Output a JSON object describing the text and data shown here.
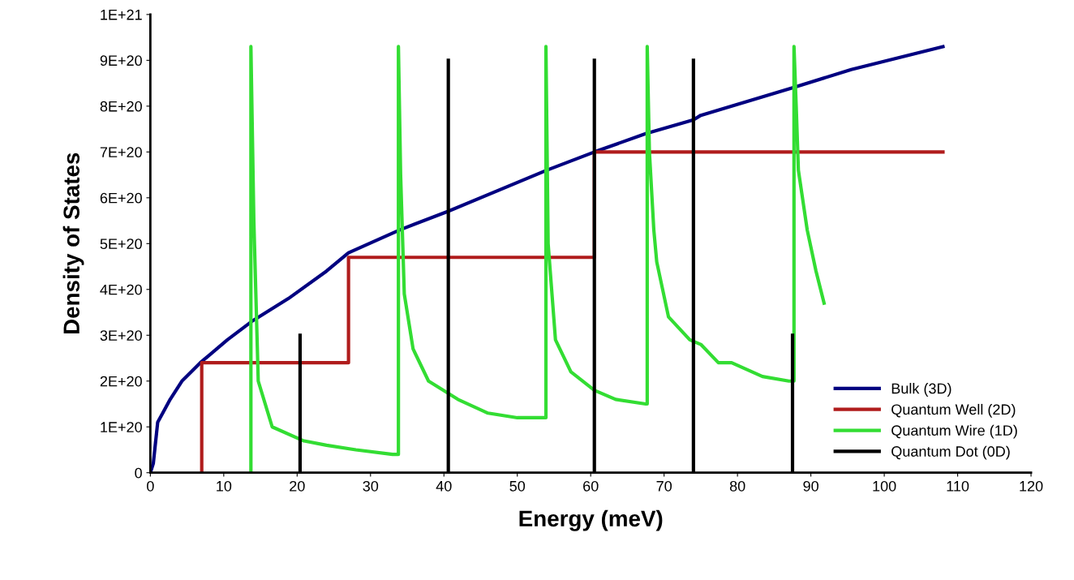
{
  "chart_data": {
    "type": "line",
    "xlabel": "Energy (meV)",
    "ylabel": "Density of States",
    "xlim": [
      0,
      120
    ],
    "xticks": [
      0,
      10,
      20,
      30,
      40,
      50,
      60,
      70,
      80,
      90,
      100,
      110,
      120
    ],
    "ylim": [
      0,
      1e+21
    ],
    "yticks": [
      0,
      {
        "value": 1e+20,
        "label": "1E+20"
      },
      {
        "value": 2e+20,
        "label": "2E+20"
      },
      {
        "value": 3e+20,
        "label": "3E+20"
      },
      {
        "value": 4e+20,
        "label": "4E+20"
      },
      {
        "value": 5e+20,
        "label": "5E+20"
      },
      {
        "value": 6e+20,
        "label": "6E+20"
      },
      {
        "value": 7e+20,
        "label": "7E+20"
      },
      {
        "value": 8e+20,
        "label": "8E+20"
      },
      {
        "value": 9e+20,
        "label": "9E+20"
      },
      {
        "value": 1e+21,
        "label": "1E+21"
      }
    ],
    "grid": false,
    "legend": "bottom right",
    "marker": "none",
    "line_style": "solid",
    "series": [
      {
        "name": "Bulk (3D)",
        "color": "#000080",
        "x": [
          0,
          0.4,
          1,
          2.7,
          4.3,
          6.8,
          10.5,
          13.8,
          18.8,
          24,
          27,
          34,
          40.5,
          54,
          60.5,
          67.5,
          74,
          75,
          87.5,
          95.5,
          108
        ],
        "values": [
          0,
          2e+19,
          1.1e+20,
          1.6e+20,
          2e+20,
          2.4e+20,
          2.9e+20,
          3.3e+20,
          3.8e+20,
          4.4e+20,
          4.8e+20,
          5.3e+20,
          5.7e+20,
          6.6e+20,
          7e+20,
          7.4e+20,
          7.7e+20,
          7.8e+20,
          8.4e+20,
          8.8e+20,
          9.3e+20
        ]
      },
      {
        "name": "Quantum Well (2D)",
        "color": "#b01c1c",
        "x": [
          7,
          7,
          27,
          27,
          60.5,
          60.5,
          108
        ],
        "values": [
          0,
          2.4e+20,
          2.4e+20,
          4.7e+20,
          4.7e+20,
          7e+20,
          7e+20
        ]
      },
      {
        "name": "Quantum Wire (1D)",
        "color": "#33dd33",
        "x": [
          13.7,
          13.7,
          14.1,
          14.7,
          16.6,
          20.8,
          24,
          28,
          33,
          33.8,
          33.8,
          34.1,
          34.6,
          35.8,
          37.9,
          41.9,
          46,
          50,
          53.2,
          53.9,
          53.9,
          54.2,
          55.2,
          57.3,
          60.5,
          63.4,
          67.5,
          67.7,
          67.7,
          68,
          68.6,
          69,
          70.6,
          73.5,
          75,
          77.4,
          79.2,
          83.4,
          87,
          87.7,
          87.7,
          88,
          88.3,
          89.5,
          90.7,
          91.8
        ],
        "values": [
          0,
          9.3e+20,
          5.5e+20,
          2e+20,
          1e+20,
          7e+19,
          6e+19,
          5e+19,
          4e+19,
          4e+19,
          9.3e+20,
          6.5e+20,
          3.9e+20,
          2.7e+20,
          2e+20,
          1.6e+20,
          1.3e+20,
          1.2e+20,
          1.2e+20,
          1.2e+20,
          9.3e+20,
          5e+20,
          2.9e+20,
          2.2e+20,
          1.8e+20,
          1.6e+20,
          1.5e+20,
          1.5e+20,
          9.3e+20,
          7e+20,
          5.3e+20,
          4.6e+20,
          3.4e+20,
          2.9e+20,
          2.8e+20,
          2.4e+20,
          2.4e+20,
          2.1e+20,
          2e+20,
          2e+20,
          9.3e+20,
          8e+20,
          6.6e+20,
          5.3e+20,
          4.4e+20,
          3.7e+20
        ]
      },
      {
        "name": "Quantum Dot (0D)",
        "color": "#000000",
        "x": [
          20.4,
          20.4,
          null,
          40.6,
          40.6,
          null,
          60.5,
          60.5,
          null,
          74,
          74,
          null,
          87.5,
          87.5
        ],
        "values": [
          0,
          3e+20,
          null,
          0,
          9e+20,
          null,
          0,
          9e+20,
          null,
          0,
          9e+20,
          null,
          0,
          3e+20
        ]
      }
    ]
  }
}
